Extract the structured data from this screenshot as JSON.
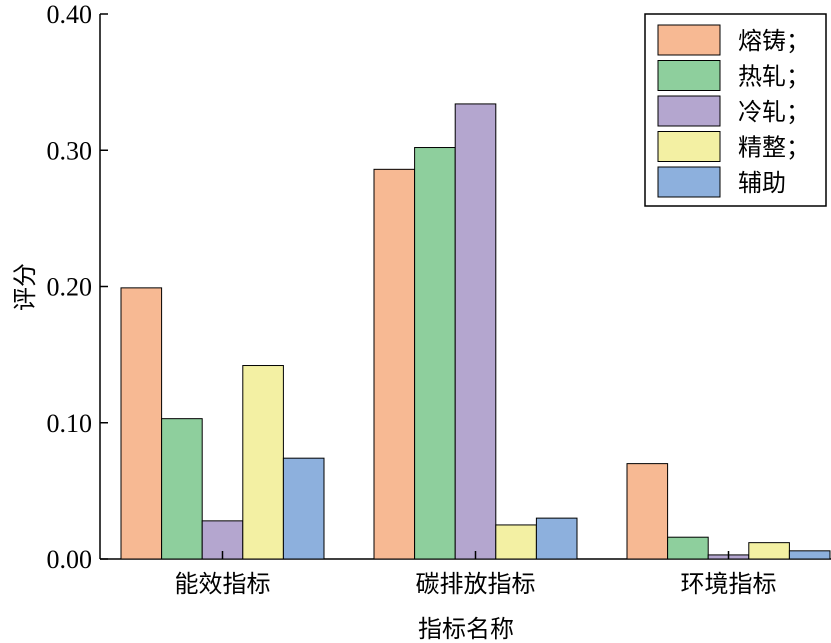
{
  "chart_data": {
    "type": "bar",
    "title": "",
    "xlabel": "指标名称",
    "ylabel": "评分",
    "categories": [
      "能效指标",
      "碳排放指标",
      "环境指标"
    ],
    "ylim": [
      0,
      0.4
    ],
    "yticks": [
      0.0,
      0.1,
      0.2,
      0.3,
      0.4
    ],
    "ytick_labels": [
      "0.00",
      "0.10",
      "0.20",
      "0.30",
      "0.40"
    ],
    "grid": false,
    "legend_position": "top-right",
    "series": [
      {
        "name": "熔铸；",
        "color": "#f7b993",
        "values": [
          0.199,
          0.286,
          0.07
        ]
      },
      {
        "name": "热轧；",
        "color": "#8ecf9d",
        "values": [
          0.103,
          0.302,
          0.016
        ]
      },
      {
        "name": "冷轧；",
        "color": "#b4a6cf",
        "values": [
          0.028,
          0.334,
          0.003
        ]
      },
      {
        "name": "精整；",
        "color": "#f3f0a3",
        "values": [
          0.142,
          0.025,
          0.012
        ]
      },
      {
        "name": "辅助",
        "color": "#8db0dd",
        "values": [
          0.074,
          0.03,
          0.006
        ]
      }
    ]
  }
}
